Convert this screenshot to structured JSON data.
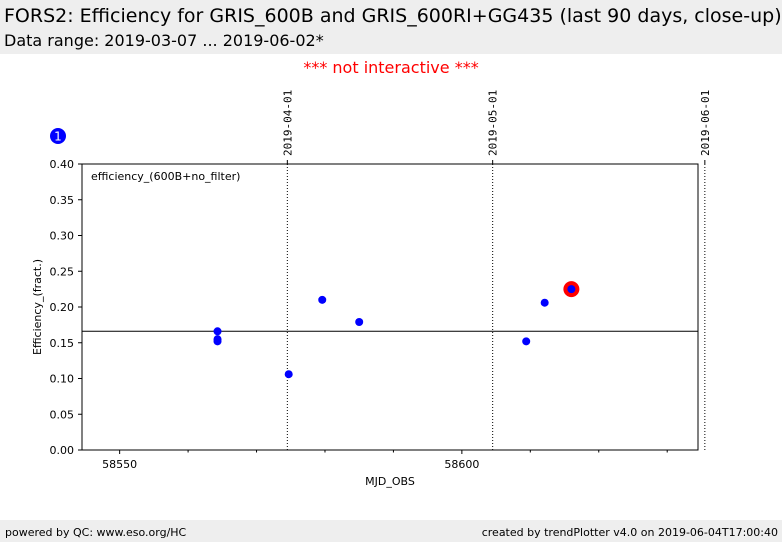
{
  "header": {
    "title": "FORS2: Efficiency for GRIS_600B and GRIS_600RI+GG435 (last 90 days, close-up)",
    "subtitle": "Data range: 2019-03-07 ... 2019-06-02*"
  },
  "notice": "*** not interactive ***",
  "badge": "1",
  "footer": {
    "left": "powered by QC: www.eso.org/HC",
    "right": "created by trendPlotter v4.0 on 2019-06-04T17:00:40"
  },
  "colors": {
    "points": "#0000ff",
    "highlight": "#ff0000",
    "notice": "#ff0000"
  },
  "chart_data": {
    "type": "scatter",
    "title": "",
    "xlabel": "MJD_OBS",
    "ylabel": "Efficiency_(fract.)",
    "xlim": [
      58544.5,
      58634.5
    ],
    "ylim": [
      0.0,
      0.4
    ],
    "xticks": [
      58550,
      58600
    ],
    "xticklabels": [
      "58550",
      "58600"
    ],
    "xminor": [
      58560,
      58570,
      58580,
      58590,
      58610,
      58620,
      58630
    ],
    "yticks": [
      0.0,
      0.05,
      0.1,
      0.15,
      0.2,
      0.25,
      0.3,
      0.35,
      0.4
    ],
    "yticklabels": [
      "0.00",
      "0.05",
      "0.10",
      "0.15",
      "0.20",
      "0.25",
      "0.30",
      "0.35",
      "0.40"
    ],
    "annotation": "efficiency_(600B+no_filter)",
    "reference_line": 0.166,
    "date_markers": [
      {
        "label": "2019-04-01",
        "mjd": 58574.5
      },
      {
        "label": "2019-05-01",
        "mjd": 58604.5
      },
      {
        "label": "2019-06-01",
        "mjd": 58635.5
      }
    ],
    "series": [
      {
        "x": [
          58564.3,
          58564.3,
          58564.3,
          58574.7,
          58579.6,
          58585.0,
          58609.4,
          58612.1,
          58616.0
        ],
        "y": [
          0.166,
          0.155,
          0.152,
          0.106,
          0.21,
          0.179,
          0.152,
          0.206,
          0.225
        ]
      }
    ],
    "highlight": {
      "x": 58616.0,
      "y": 0.225
    },
    "grid": false
  }
}
